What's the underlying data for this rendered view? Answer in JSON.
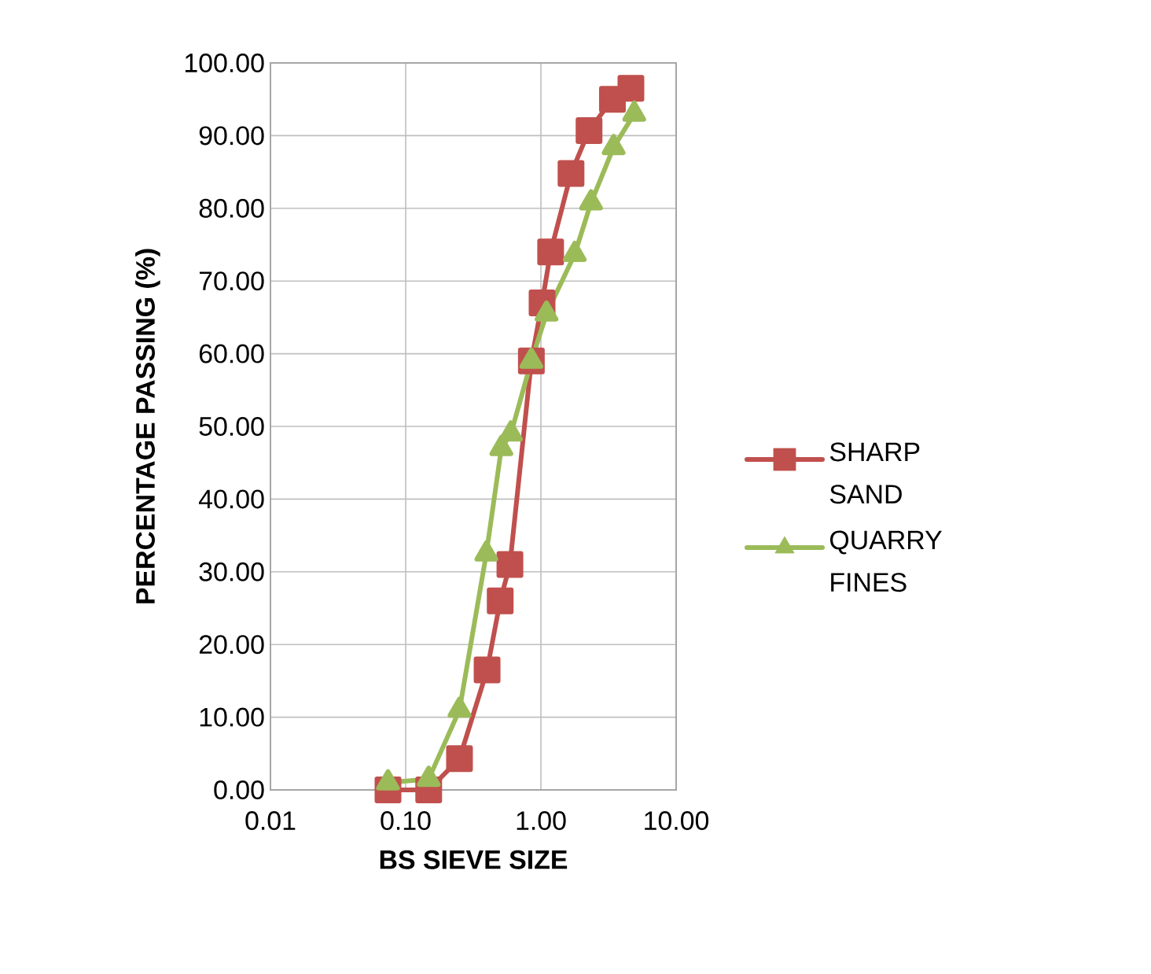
{
  "chart_data": {
    "type": "line",
    "xlabel": "BS SIEVE SIZE",
    "ylabel": "PERCENTAGE PASSING (%)",
    "log": "x",
    "xlim": [
      0.01,
      10
    ],
    "ylim": [
      0,
      100
    ],
    "xticks": [
      {
        "value": 0.01,
        "label": "0.01"
      },
      {
        "value": 0.1,
        "label": "0.10"
      },
      {
        "value": 1,
        "label": "1.00"
      },
      {
        "value": 10,
        "label": "10.00"
      }
    ],
    "yticks": [
      {
        "value": 0,
        "label": "0.00"
      },
      {
        "value": 10,
        "label": "10.00"
      },
      {
        "value": 20,
        "label": "20.00"
      },
      {
        "value": 30,
        "label": "30.00"
      },
      {
        "value": 40,
        "label": "40.00"
      },
      {
        "value": 50,
        "label": "50.00"
      },
      {
        "value": 60,
        "label": "60.00"
      },
      {
        "value": 70,
        "label": "70.00"
      },
      {
        "value": 80,
        "label": "80.00"
      },
      {
        "value": 90,
        "label": "90.00"
      },
      {
        "value": 100,
        "label": "100.00"
      }
    ],
    "grid": true,
    "legend": "right",
    "series": [
      {
        "name": "SHARP SAND",
        "color": "#c0504d",
        "marker": "square",
        "x": [
          0.074,
          0.148,
          0.25,
          0.4,
          0.5,
          0.59,
          0.85,
          1.02,
          1.18,
          1.67,
          2.27,
          3.38,
          4.63
        ],
        "values": [
          0,
          0,
          4.3,
          16.5,
          26,
          31,
          59,
          67,
          74,
          84.8,
          90.7,
          95,
          96.5
        ]
      },
      {
        "name": "QUARRY FINES",
        "color": "#9bbb59",
        "marker": "triangle",
        "x": [
          0.074,
          0.148,
          0.25,
          0.395,
          0.51,
          0.6,
          0.85,
          1.1,
          1.78,
          2.35,
          3.45,
          4.9
        ],
        "values": [
          1,
          1.5,
          11,
          32.5,
          47,
          49,
          59,
          65.5,
          73.7,
          80.8,
          88.4,
          93
        ]
      }
    ]
  }
}
